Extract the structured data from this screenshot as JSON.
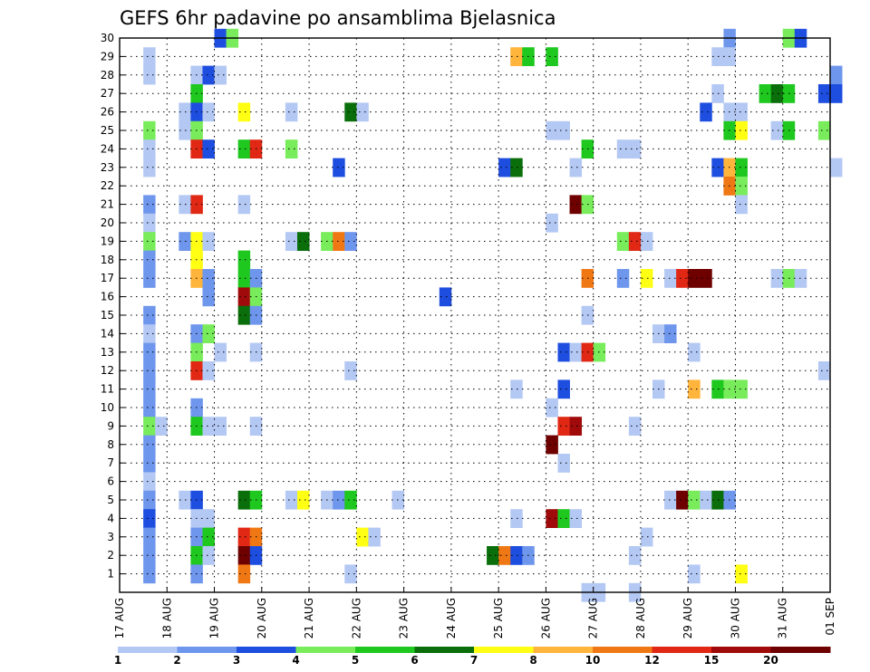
{
  "chart_data": {
    "type": "heatmap",
    "title": "GEFS 6hr padavine po ansamblima Bjelasnica",
    "xlabel": "",
    "ylabel": "",
    "x_ticks": [
      "17 AUG",
      "18 AUG",
      "19 AUG",
      "20 AUG",
      "21 AUG",
      "22 AUG",
      "23 AUG",
      "24 AUG",
      "25 AUG",
      "26 AUG",
      "27 AUG",
      "28 AUG",
      "29 AUG",
      "30 AUG",
      "31 AUG",
      "01 SEP"
    ],
    "y_ticks": [
      "1",
      "2",
      "3",
      "4",
      "5",
      "6",
      "7",
      "8",
      "9",
      "10",
      "11",
      "12",
      "13",
      "14",
      "15",
      "16",
      "17",
      "18",
      "19",
      "20",
      "21",
      "22",
      "23",
      "24",
      "25",
      "26",
      "27",
      "28",
      "29",
      "30"
    ],
    "x_unit": "6-hour step from 17 AUG 00Z",
    "y_range": [
      0,
      30
    ],
    "grid": true,
    "colorbar": {
      "labels": [
        "1",
        "2",
        "3",
        "4",
        "5",
        "6",
        "7",
        "8",
        "10",
        "12",
        "15",
        "20"
      ],
      "colors": [
        "#b4c8f4",
        "#6e96ec",
        "#1e4ee0",
        "#78ec5a",
        "#1ec81e",
        "#0a6e0a",
        "#ffff14",
        "#ffb43c",
        "#f07814",
        "#e02814",
        "#a00a0a",
        "#6e0000"
      ]
    },
    "cells": [
      {
        "member": 30,
        "step": 8,
        "cls": 3
      },
      {
        "member": 30,
        "step": 9,
        "cls": 4
      },
      {
        "member": 30,
        "step": 51,
        "cls": 2
      },
      {
        "member": 30,
        "step": 56,
        "cls": 4
      },
      {
        "member": 30,
        "step": 57,
        "cls": 3
      },
      {
        "member": 29,
        "step": 2,
        "cls": 1
      },
      {
        "member": 29,
        "step": 33,
        "cls": 8
      },
      {
        "member": 29,
        "step": 34,
        "cls": 5
      },
      {
        "member": 29,
        "step": 36,
        "cls": 5
      },
      {
        "member": 29,
        "step": 50,
        "cls": 1
      },
      {
        "member": 29,
        "step": 51,
        "cls": 1
      },
      {
        "member": 28,
        "step": 2,
        "cls": 1
      },
      {
        "member": 28,
        "step": 6,
        "cls": 1
      },
      {
        "member": 28,
        "step": 7,
        "cls": 3
      },
      {
        "member": 28,
        "step": 8,
        "cls": 1
      },
      {
        "member": 28,
        "step": 60,
        "cls": 2
      },
      {
        "member": 27,
        "step": 6,
        "cls": 5
      },
      {
        "member": 27,
        "step": 50,
        "cls": 1
      },
      {
        "member": 27,
        "step": 54,
        "cls": 5
      },
      {
        "member": 27,
        "step": 55,
        "cls": 6
      },
      {
        "member": 27,
        "step": 56,
        "cls": 5
      },
      {
        "member": 27,
        "step": 59,
        "cls": 3
      },
      {
        "member": 27,
        "step": 60,
        "cls": 3
      },
      {
        "member": 26,
        "step": 5,
        "cls": 1
      },
      {
        "member": 26,
        "step": 6,
        "cls": 3
      },
      {
        "member": 26,
        "step": 7,
        "cls": 1
      },
      {
        "member": 26,
        "step": 10,
        "cls": 7
      },
      {
        "member": 26,
        "step": 14,
        "cls": 1
      },
      {
        "member": 26,
        "step": 19,
        "cls": 6
      },
      {
        "member": 26,
        "step": 20,
        "cls": 1
      },
      {
        "member": 26,
        "step": 49,
        "cls": 3
      },
      {
        "member": 26,
        "step": 51,
        "cls": 1
      },
      {
        "member": 26,
        "step": 52,
        "cls": 1
      },
      {
        "member": 25,
        "step": 2,
        "cls": 4
      },
      {
        "member": 25,
        "step": 5,
        "cls": 1
      },
      {
        "member": 25,
        "step": 6,
        "cls": 4
      },
      {
        "member": 25,
        "step": 36,
        "cls": 1
      },
      {
        "member": 25,
        "step": 37,
        "cls": 1
      },
      {
        "member": 25,
        "step": 51,
        "cls": 5
      },
      {
        "member": 25,
        "step": 52,
        "cls": 7
      },
      {
        "member": 25,
        "step": 55,
        "cls": 1
      },
      {
        "member": 25,
        "step": 56,
        "cls": 5
      },
      {
        "member": 25,
        "step": 59,
        "cls": 4
      },
      {
        "member": 24,
        "step": 2,
        "cls": 1
      },
      {
        "member": 24,
        "step": 6,
        "cls": 10
      },
      {
        "member": 24,
        "step": 7,
        "cls": 3
      },
      {
        "member": 24,
        "step": 10,
        "cls": 5
      },
      {
        "member": 24,
        "step": 11,
        "cls": 10
      },
      {
        "member": 24,
        "step": 14,
        "cls": 4
      },
      {
        "member": 24,
        "step": 39,
        "cls": 5
      },
      {
        "member": 24,
        "step": 42,
        "cls": 1
      },
      {
        "member": 24,
        "step": 43,
        "cls": 1
      },
      {
        "member": 23,
        "step": 2,
        "cls": 1
      },
      {
        "member": 23,
        "step": 18,
        "cls": 3
      },
      {
        "member": 23,
        "step": 32,
        "cls": 3
      },
      {
        "member": 23,
        "step": 33,
        "cls": 6
      },
      {
        "member": 23,
        "step": 38,
        "cls": 1
      },
      {
        "member": 23,
        "step": 50,
        "cls": 3
      },
      {
        "member": 23,
        "step": 51,
        "cls": 8
      },
      {
        "member": 23,
        "step": 52,
        "cls": 5
      },
      {
        "member": 23,
        "step": 60,
        "cls": 1
      },
      {
        "member": 22,
        "step": 51,
        "cls": 9
      },
      {
        "member": 22,
        "step": 52,
        "cls": 4
      },
      {
        "member": 21,
        "step": 2,
        "cls": 2
      },
      {
        "member": 21,
        "step": 5,
        "cls": 1
      },
      {
        "member": 21,
        "step": 6,
        "cls": 10
      },
      {
        "member": 21,
        "step": 10,
        "cls": 1
      },
      {
        "member": 21,
        "step": 38,
        "cls": 12
      },
      {
        "member": 21,
        "step": 39,
        "cls": 4
      },
      {
        "member": 21,
        "step": 52,
        "cls": 1
      },
      {
        "member": 20,
        "step": 2,
        "cls": 1
      },
      {
        "member": 20,
        "step": 36,
        "cls": 1
      },
      {
        "member": 19,
        "step": 2,
        "cls": 4
      },
      {
        "member": 19,
        "step": 5,
        "cls": 2
      },
      {
        "member": 19,
        "step": 6,
        "cls": 7
      },
      {
        "member": 19,
        "step": 7,
        "cls": 1
      },
      {
        "member": 19,
        "step": 14,
        "cls": 1
      },
      {
        "member": 19,
        "step": 15,
        "cls": 6
      },
      {
        "member": 19,
        "step": 17,
        "cls": 4
      },
      {
        "member": 19,
        "step": 18,
        "cls": 9
      },
      {
        "member": 19,
        "step": 19,
        "cls": 2
      },
      {
        "member": 19,
        "step": 42,
        "cls": 4
      },
      {
        "member": 19,
        "step": 43,
        "cls": 10
      },
      {
        "member": 19,
        "step": 44,
        "cls": 1
      },
      {
        "member": 18,
        "step": 2,
        "cls": 2
      },
      {
        "member": 18,
        "step": 6,
        "cls": 7
      },
      {
        "member": 18,
        "step": 10,
        "cls": 5
      },
      {
        "member": 17,
        "step": 2,
        "cls": 2
      },
      {
        "member": 17,
        "step": 6,
        "cls": 8
      },
      {
        "member": 17,
        "step": 7,
        "cls": 2
      },
      {
        "member": 17,
        "step": 10,
        "cls": 5
      },
      {
        "member": 17,
        "step": 11,
        "cls": 2
      },
      {
        "member": 17,
        "step": 39,
        "cls": 9
      },
      {
        "member": 17,
        "step": 42,
        "cls": 2
      },
      {
        "member": 17,
        "step": 44,
        "cls": 7
      },
      {
        "member": 17,
        "step": 46,
        "cls": 1
      },
      {
        "member": 17,
        "step": 47,
        "cls": 10
      },
      {
        "member": 17,
        "step": 48,
        "cls": 12
      },
      {
        "member": 17,
        "step": 49,
        "cls": 12
      },
      {
        "member": 17,
        "step": 55,
        "cls": 1
      },
      {
        "member": 17,
        "step": 56,
        "cls": 4
      },
      {
        "member": 17,
        "step": 57,
        "cls": 1
      },
      {
        "member": 16,
        "step": 7,
        "cls": 2
      },
      {
        "member": 16,
        "step": 10,
        "cls": 11
      },
      {
        "member": 16,
        "step": 11,
        "cls": 4
      },
      {
        "member": 16,
        "step": 27,
        "cls": 3
      },
      {
        "member": 15,
        "step": 2,
        "cls": 2
      },
      {
        "member": 15,
        "step": 10,
        "cls": 6
      },
      {
        "member": 15,
        "step": 11,
        "cls": 2
      },
      {
        "member": 15,
        "step": 39,
        "cls": 1
      },
      {
        "member": 14,
        "step": 2,
        "cls": 1
      },
      {
        "member": 14,
        "step": 6,
        "cls": 2
      },
      {
        "member": 14,
        "step": 7,
        "cls": 4
      },
      {
        "member": 14,
        "step": 45,
        "cls": 1
      },
      {
        "member": 14,
        "step": 46,
        "cls": 2
      },
      {
        "member": 13,
        "step": 2,
        "cls": 2
      },
      {
        "member": 13,
        "step": 6,
        "cls": 4
      },
      {
        "member": 13,
        "step": 8,
        "cls": 1
      },
      {
        "member": 13,
        "step": 11,
        "cls": 1
      },
      {
        "member": 13,
        "step": 37,
        "cls": 3
      },
      {
        "member": 13,
        "step": 38,
        "cls": 1
      },
      {
        "member": 13,
        "step": 39,
        "cls": 10
      },
      {
        "member": 13,
        "step": 40,
        "cls": 4
      },
      {
        "member": 13,
        "step": 48,
        "cls": 1
      },
      {
        "member": 12,
        "step": 2,
        "cls": 2
      },
      {
        "member": 12,
        "step": 6,
        "cls": 10
      },
      {
        "member": 12,
        "step": 7,
        "cls": 1
      },
      {
        "member": 12,
        "step": 19,
        "cls": 1
      },
      {
        "member": 12,
        "step": 59,
        "cls": 1
      },
      {
        "member": 11,
        "step": 2,
        "cls": 2
      },
      {
        "member": 11,
        "step": 33,
        "cls": 1
      },
      {
        "member": 11,
        "step": 37,
        "cls": 3
      },
      {
        "member": 11,
        "step": 45,
        "cls": 1
      },
      {
        "member": 11,
        "step": 48,
        "cls": 8
      },
      {
        "member": 11,
        "step": 50,
        "cls": 5
      },
      {
        "member": 11,
        "step": 51,
        "cls": 4
      },
      {
        "member": 11,
        "step": 52,
        "cls": 4
      },
      {
        "member": 10,
        "step": 2,
        "cls": 2
      },
      {
        "member": 10,
        "step": 6,
        "cls": 2
      },
      {
        "member": 10,
        "step": 36,
        "cls": 1
      },
      {
        "member": 9,
        "step": 2,
        "cls": 4
      },
      {
        "member": 9,
        "step": 3,
        "cls": 1
      },
      {
        "member": 9,
        "step": 6,
        "cls": 5
      },
      {
        "member": 9,
        "step": 7,
        "cls": 1
      },
      {
        "member": 9,
        "step": 8,
        "cls": 1
      },
      {
        "member": 9,
        "step": 11,
        "cls": 1
      },
      {
        "member": 9,
        "step": 37,
        "cls": 10
      },
      {
        "member": 9,
        "step": 38,
        "cls": 11
      },
      {
        "member": 9,
        "step": 43,
        "cls": 1
      },
      {
        "member": 8,
        "step": 2,
        "cls": 2
      },
      {
        "member": 8,
        "step": 36,
        "cls": 12
      },
      {
        "member": 7,
        "step": 2,
        "cls": 2
      },
      {
        "member": 7,
        "step": 37,
        "cls": 1
      },
      {
        "member": 6,
        "step": 2,
        "cls": 1
      },
      {
        "member": 5,
        "step": 2,
        "cls": 2
      },
      {
        "member": 5,
        "step": 5,
        "cls": 1
      },
      {
        "member": 5,
        "step": 6,
        "cls": 3
      },
      {
        "member": 5,
        "step": 10,
        "cls": 6
      },
      {
        "member": 5,
        "step": 11,
        "cls": 5
      },
      {
        "member": 5,
        "step": 14,
        "cls": 1
      },
      {
        "member": 5,
        "step": 15,
        "cls": 7
      },
      {
        "member": 5,
        "step": 17,
        "cls": 1
      },
      {
        "member": 5,
        "step": 18,
        "cls": 2
      },
      {
        "member": 5,
        "step": 19,
        "cls": 5
      },
      {
        "member": 5,
        "step": 23,
        "cls": 1
      },
      {
        "member": 5,
        "step": 46,
        "cls": 1
      },
      {
        "member": 5,
        "step": 47,
        "cls": 12
      },
      {
        "member": 5,
        "step": 48,
        "cls": 4
      },
      {
        "member": 5,
        "step": 49,
        "cls": 1
      },
      {
        "member": 5,
        "step": 50,
        "cls": 6
      },
      {
        "member": 5,
        "step": 51,
        "cls": 2
      },
      {
        "member": 4,
        "step": 2,
        "cls": 3
      },
      {
        "member": 4,
        "step": 6,
        "cls": 1
      },
      {
        "member": 4,
        "step": 7,
        "cls": 1
      },
      {
        "member": 4,
        "step": 33,
        "cls": 1
      },
      {
        "member": 4,
        "step": 36,
        "cls": 11
      },
      {
        "member": 4,
        "step": 37,
        "cls": 5
      },
      {
        "member": 4,
        "step": 38,
        "cls": 1
      },
      {
        "member": 3,
        "step": 2,
        "cls": 2
      },
      {
        "member": 3,
        "step": 6,
        "cls": 2
      },
      {
        "member": 3,
        "step": 7,
        "cls": 5
      },
      {
        "member": 3,
        "step": 10,
        "cls": 10
      },
      {
        "member": 3,
        "step": 11,
        "cls": 9
      },
      {
        "member": 3,
        "step": 20,
        "cls": 7
      },
      {
        "member": 3,
        "step": 21,
        "cls": 1
      },
      {
        "member": 3,
        "step": 44,
        "cls": 1
      },
      {
        "member": 2,
        "step": 2,
        "cls": 2
      },
      {
        "member": 2,
        "step": 6,
        "cls": 5
      },
      {
        "member": 2,
        "step": 7,
        "cls": 1
      },
      {
        "member": 2,
        "step": 10,
        "cls": 12
      },
      {
        "member": 2,
        "step": 11,
        "cls": 3
      },
      {
        "member": 2,
        "step": 31,
        "cls": 6
      },
      {
        "member": 2,
        "step": 32,
        "cls": 9
      },
      {
        "member": 2,
        "step": 33,
        "cls": 3
      },
      {
        "member": 2,
        "step": 34,
        "cls": 2
      },
      {
        "member": 2,
        "step": 43,
        "cls": 1
      },
      {
        "member": 1,
        "step": 2,
        "cls": 2
      },
      {
        "member": 1,
        "step": 6,
        "cls": 2
      },
      {
        "member": 1,
        "step": 10,
        "cls": 9
      },
      {
        "member": 1,
        "step": 19,
        "cls": 1
      },
      {
        "member": 1,
        "step": 48,
        "cls": 1
      },
      {
        "member": 1,
        "step": 52,
        "cls": 7
      },
      {
        "member": 0,
        "step": 39,
        "cls": 1
      },
      {
        "member": 0,
        "step": 40,
        "cls": 1
      },
      {
        "member": 0,
        "step": 43,
        "cls": 1
      }
    ]
  }
}
